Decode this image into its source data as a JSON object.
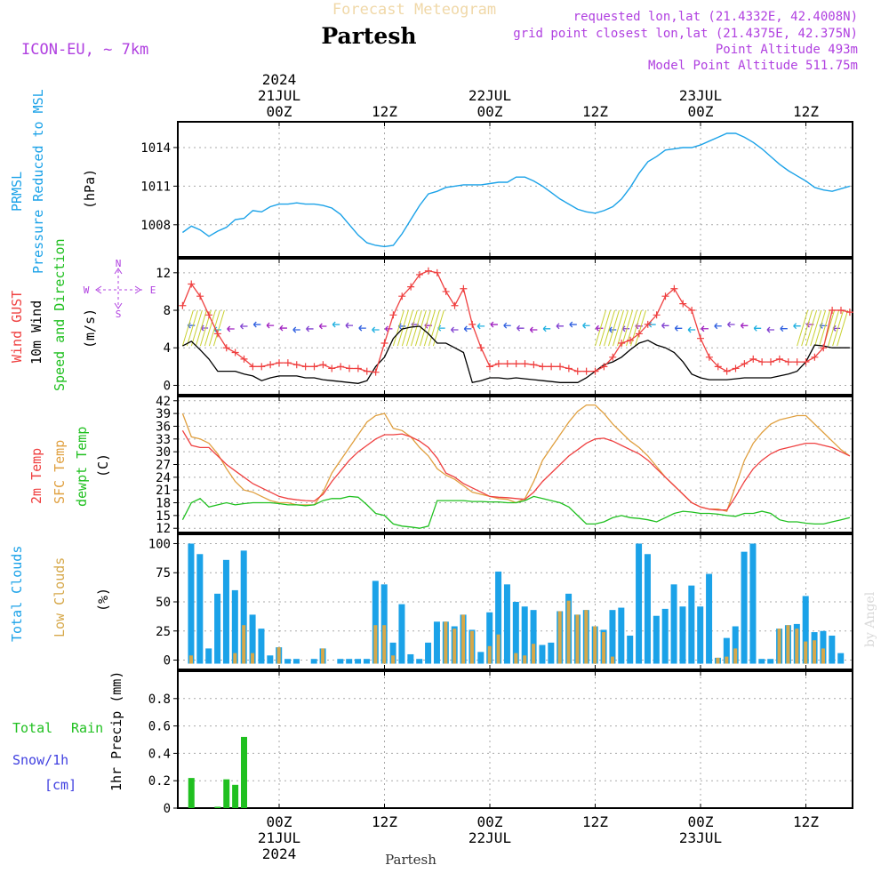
{
  "header": {
    "subtitle": "Forecast Meteogram",
    "title": "Partesh",
    "model": "ICON-EU, ~ 7km",
    "info": [
      "requested lon,lat (21.4332E, 42.4008N)",
      "grid point closest lon,lat (21.4375E, 42.375N)",
      "Point Altitude 493m",
      "Model Point Altitude 511.75m"
    ],
    "bottom_label": "Partesh",
    "watermark": "by Angel"
  },
  "colors": {
    "pressure": "#1ba2e8",
    "gust": "#ef4040",
    "wind": "#000000",
    "t2m": "#ef4040",
    "tsfc": "#e0a040",
    "dewpt": "#20c020",
    "total_clouds": "#1ba2e8",
    "low_clouds": "#d6a84a",
    "rain": "#20c020",
    "snow": "#4040e0",
    "legend_purple": "#b040e0"
  },
  "time_axis": {
    "top_ticks": [
      {
        "h": 0,
        "lines": [
          "2024",
          "21JUL",
          "00Z"
        ]
      },
      {
        "h": 12,
        "lines": [
          "12Z"
        ]
      },
      {
        "h": 24,
        "lines": [
          "22JUL",
          "00Z"
        ]
      },
      {
        "h": 36,
        "lines": [
          "12Z"
        ]
      },
      {
        "h": 48,
        "lines": [
          "23JUL",
          "00Z"
        ]
      },
      {
        "h": 60,
        "lines": [
          "12Z"
        ]
      }
    ],
    "bottom_ticks": [
      {
        "h": 0,
        "lines": [
          "00Z",
          "21JUL",
          "2024"
        ]
      },
      {
        "h": 12,
        "lines": [
          "12Z"
        ]
      },
      {
        "h": 24,
        "lines": [
          "00Z",
          "22JUL"
        ]
      },
      {
        "h": 36,
        "lines": [
          "12Z"
        ]
      },
      {
        "h": 48,
        "lines": [
          "00Z",
          "23JUL"
        ]
      },
      {
        "h": 60,
        "lines": [
          "12Z"
        ]
      }
    ]
  },
  "chart_data": [
    {
      "type": "line",
      "id": "pressure",
      "title": "Pressure Reduced to MSL",
      "legend": [
        "PRMSL",
        "Pressure Reduced to MSL"
      ],
      "ylabel": "(hPa)",
      "ylim": [
        1005.5,
        1016
      ],
      "yticks": [
        1008,
        1011,
        1014
      ],
      "x": [
        -11,
        -10,
        -9,
        -8,
        -7,
        -6,
        -5,
        -4,
        -3,
        -2,
        -1,
        0,
        1,
        2,
        3,
        4,
        5,
        6,
        7,
        8,
        9,
        10,
        11,
        12,
        13,
        14,
        15,
        16,
        17,
        18,
        19,
        20,
        21,
        22,
        23,
        24,
        25,
        26,
        27,
        28,
        29,
        30,
        31,
        32,
        33,
        34,
        35,
        36,
        37,
        38,
        39,
        40,
        41,
        42,
        43,
        44,
        45,
        46,
        47,
        48,
        49,
        50,
        51,
        52,
        53,
        54,
        55,
        56,
        57,
        58,
        59,
        60,
        61,
        62,
        63,
        64,
        65
      ],
      "series": [
        {
          "name": "PRMSL",
          "values": [
            1007.4,
            1007.9,
            1007.6,
            1007.1,
            1007.5,
            1007.8,
            1008.4,
            1008.5,
            1009.1,
            1009.0,
            1009.4,
            1009.6,
            1009.6,
            1009.7,
            1009.6,
            1009.6,
            1009.5,
            1009.3,
            1008.8,
            1008.0,
            1007.2,
            1006.6,
            1006.4,
            1006.3,
            1006.4,
            1007.3,
            1008.4,
            1009.5,
            1010.4,
            1010.6,
            1010.9,
            1011.0,
            1011.1,
            1011.1,
            1011.1,
            1011.2,
            1011.3,
            1011.3,
            1011.7,
            1011.7,
            1011.4,
            1011.0,
            1010.5,
            1010.0,
            1009.6,
            1009.2,
            1009.0,
            1008.9,
            1009.1,
            1009.4,
            1010.0,
            1010.9,
            1012.0,
            1012.9,
            1013.3,
            1013.8,
            1013.9,
            1014.0,
            1014.0,
            1014.2,
            1014.5,
            1014.8,
            1015.1,
            1015.1,
            1014.8,
            1014.4,
            1013.9,
            1013.3,
            1012.7,
            1012.2,
            1011.8,
            1011.4,
            1010.9,
            1010.7,
            1010.6,
            1010.8,
            1011.0
          ]
        }
      ]
    },
    {
      "type": "line",
      "id": "wind",
      "title": "Wind GUST / 10m Wind Speed and Direction",
      "legend": [
        "Wind GUST",
        "10m Wind",
        "Speed and Direction"
      ],
      "ylabel": "(m/s)",
      "compass": {
        "n": "N",
        "s": "S",
        "w": "W",
        "e": "E"
      },
      "ylim": [
        -1,
        13.5
      ],
      "yticks": [
        0,
        4,
        8,
        12
      ],
      "x": [
        -11,
        -10,
        -9,
        -8,
        -7,
        -6,
        -5,
        -4,
        -3,
        -2,
        -1,
        0,
        1,
        2,
        3,
        4,
        5,
        6,
        7,
        8,
        9,
        10,
        11,
        12,
        13,
        14,
        15,
        16,
        17,
        18,
        19,
        20,
        21,
        22,
        23,
        24,
        25,
        26,
        27,
        28,
        29,
        30,
        31,
        32,
        33,
        34,
        35,
        36,
        37,
        38,
        39,
        40,
        41,
        42,
        43,
        44,
        45,
        46,
        47,
        48,
        49,
        50,
        51,
        52,
        53,
        54,
        55,
        56,
        57,
        58,
        59,
        60,
        61,
        62,
        63,
        64,
        65
      ],
      "series": [
        {
          "name": "Wind GUST",
          "values": [
            8.5,
            10.8,
            9.5,
            7.5,
            5.5,
            4.0,
            3.5,
            2.8,
            2.0,
            2.0,
            2.2,
            2.4,
            2.4,
            2.2,
            2.0,
            2.0,
            2.2,
            1.8,
            2.0,
            1.8,
            1.8,
            1.5,
            1.4,
            4.5,
            7.5,
            9.5,
            10.5,
            11.8,
            12.2,
            12.0,
            10.0,
            8.5,
            10.3,
            6.5,
            4.0,
            2.0,
            2.3,
            2.3,
            2.3,
            2.3,
            2.2,
            2.0,
            2.0,
            2.0,
            1.8,
            1.5,
            1.5,
            1.5,
            2.0,
            3.0,
            4.5,
            4.8,
            5.5,
            6.5,
            7.5,
            9.5,
            10.3,
            8.7,
            8.0,
            5.0,
            3.0,
            2.0,
            1.5,
            1.8,
            2.3,
            2.8,
            2.5,
            2.5,
            2.8,
            2.5,
            2.5,
            2.5,
            3.0,
            4.0,
            8.0,
            8.0,
            7.8
          ],
          "extra": [
            8.0,
            8.3,
            8.8,
            8.5
          ]
        },
        {
          "name": "10m Wind",
          "values": [
            4.2,
            4.7,
            3.8,
            2.8,
            1.5,
            1.5,
            1.5,
            1.2,
            1.0,
            0.5,
            0.8,
            1.0,
            1.0,
            1.0,
            0.8,
            0.8,
            0.6,
            0.5,
            0.4,
            0.3,
            0.2,
            0.5,
            2.0,
            3.0,
            5.0,
            6.0,
            6.2,
            6.3,
            5.5,
            4.5,
            4.5,
            4.0,
            3.5,
            0.3,
            0.5,
            0.8,
            0.8,
            0.7,
            0.8,
            0.7,
            0.6,
            0.5,
            0.4,
            0.3,
            0.3,
            0.3,
            0.8,
            1.5,
            2.2,
            2.5,
            3.0,
            3.8,
            4.5,
            4.8,
            4.3,
            4.0,
            3.5,
            2.5,
            1.2,
            0.8,
            0.6,
            0.6,
            0.6,
            0.7,
            0.8,
            0.8,
            0.8,
            0.8,
            1.0,
            1.2,
            1.5,
            2.5,
            4.3,
            4.2,
            4.0,
            4.0,
            4.0
          ],
          "extra": [
            4.2,
            4.0,
            4.5,
            3.7
          ]
        }
      ]
    },
    {
      "type": "line",
      "id": "temperature",
      "title": "2m Temp / SFC Temp / dewpt Temp",
      "legend": [
        "2m Temp",
        "SFC Temp",
        "dewpt Temp"
      ],
      "ylabel": "(C)",
      "ylim": [
        11,
        43
      ],
      "yticks": [
        12,
        15,
        18,
        21,
        24,
        27,
        30,
        33,
        36,
        39,
        42
      ],
      "x": [
        -11,
        -10,
        -9,
        -8,
        -7,
        -6,
        -5,
        -4,
        -3,
        -2,
        -1,
        0,
        1,
        2,
        3,
        4,
        5,
        6,
        7,
        8,
        9,
        10,
        11,
        12,
        13,
        14,
        15,
        16,
        17,
        18,
        19,
        20,
        21,
        22,
        23,
        24,
        25,
        26,
        27,
        28,
        29,
        30,
        31,
        32,
        33,
        34,
        35,
        36,
        37,
        38,
        39,
        40,
        41,
        42,
        43,
        44,
        45,
        46,
        47,
        48,
        49,
        50,
        51,
        52,
        53,
        54,
        55,
        56,
        57,
        58,
        59,
        60,
        61,
        62,
        63,
        64,
        65
      ],
      "series": [
        {
          "name": "2m Temp",
          "values": [
            35.0,
            31.5,
            31.0,
            31.0,
            29.0,
            27.0,
            25.5,
            24.0,
            22.5,
            21.5,
            20.5,
            19.5,
            19.0,
            18.7,
            18.5,
            18.4,
            20.0,
            23.0,
            25.5,
            28.0,
            30.0,
            31.5,
            33.0,
            34.0,
            34.0,
            34.2,
            33.5,
            32.5,
            31.0,
            28.5,
            25.0,
            24.0,
            22.5,
            21.5,
            20.5,
            19.5,
            19.3,
            19.2,
            19.0,
            18.8,
            20.5,
            23.0,
            25.0,
            27.0,
            29.0,
            30.5,
            32.0,
            33.0,
            33.2,
            32.5,
            31.5,
            30.5,
            29.5,
            28.0,
            26.0,
            24.0,
            22.0,
            20.0,
            18.0,
            17.0,
            16.5,
            16.3,
            16.3,
            19.5,
            23.0,
            26.0,
            28.0,
            29.5,
            30.5,
            31.0,
            31.5,
            32.0,
            32.0,
            31.5,
            31.0,
            30.0,
            29.0
          ]
        },
        {
          "name": "SFC Temp",
          "values": [
            39.0,
            33.5,
            33.0,
            32.0,
            29.5,
            26.0,
            23.0,
            21.0,
            20.5,
            19.5,
            18.5,
            18.0,
            18.0,
            17.5,
            17.5,
            17.5,
            20.5,
            25.0,
            28.0,
            31.0,
            34.0,
            37.0,
            38.5,
            39.0,
            35.5,
            35.0,
            33.5,
            31.0,
            29.0,
            26.0,
            24.5,
            23.5,
            22.0,
            20.5,
            20.0,
            19.5,
            19.0,
            18.8,
            18.0,
            19.0,
            23.0,
            28.0,
            31.0,
            34.0,
            37.0,
            39.5,
            41.0,
            41.0,
            39.0,
            36.5,
            34.5,
            32.5,
            31.0,
            29.0,
            26.5,
            24.0,
            22.0,
            20.0,
            18.0,
            17.0,
            16.5,
            16.5,
            16.0,
            22.0,
            28.0,
            32.0,
            34.5,
            36.5,
            37.5,
            38.0,
            38.5,
            38.5,
            36.5,
            34.5,
            32.5,
            30.5,
            29.0
          ]
        },
        {
          "name": "dewpt Temp",
          "values": [
            14.0,
            18.0,
            19.0,
            17.0,
            17.5,
            18.0,
            17.5,
            17.8,
            18.0,
            18.0,
            18.0,
            17.8,
            17.5,
            17.5,
            17.3,
            17.5,
            18.5,
            19.0,
            19.0,
            19.5,
            19.3,
            17.5,
            15.5,
            15.0,
            13.0,
            12.5,
            12.3,
            12.0,
            12.5,
            18.5,
            18.5,
            18.5,
            18.5,
            18.3,
            18.3,
            18.2,
            18.2,
            18.0,
            18.0,
            18.5,
            19.5,
            19.0,
            18.5,
            18.0,
            17.0,
            15.0,
            13.0,
            13.0,
            13.5,
            14.5,
            15.0,
            14.5,
            14.3,
            14.0,
            13.5,
            14.5,
            15.5,
            16.0,
            15.8,
            15.5,
            15.5,
            15.3,
            15.0,
            14.8,
            15.5,
            15.5,
            16.0,
            15.5,
            14.0,
            13.5,
            13.5,
            13.2,
            13.0,
            13.0,
            13.5,
            14.0,
            14.5
          ]
        }
      ]
    },
    {
      "type": "bar",
      "id": "clouds",
      "title": "Total Clouds / Low Clouds",
      "legend": [
        "Total Clouds",
        "Low Clouds"
      ],
      "ylabel": "(%)",
      "ylim": [
        -8,
        108
      ],
      "yticks": [
        0,
        25,
        50,
        75,
        100
      ],
      "x": [
        -10,
        -9,
        -8,
        -7,
        -6,
        -5,
        -4,
        -3,
        -2,
        -1,
        0,
        1,
        2,
        3,
        4,
        5,
        6,
        7,
        8,
        9,
        10,
        11,
        12,
        13,
        14,
        15,
        16,
        17,
        18,
        19,
        20,
        21,
        22,
        23,
        24,
        25,
        26,
        27,
        28,
        29,
        30,
        31,
        32,
        33,
        34,
        35,
        36,
        37,
        38,
        39,
        40,
        41,
        42,
        43,
        44,
        45,
        46,
        47,
        48,
        49,
        50,
        51,
        52,
        53,
        54,
        55,
        56,
        57,
        58,
        59,
        60,
        61,
        62,
        63,
        64
      ],
      "series": [
        {
          "name": "Total Clouds",
          "values": [
            100,
            91,
            10,
            57,
            86,
            60,
            94,
            39,
            27,
            4,
            11,
            1,
            1,
            0,
            1,
            10,
            0,
            1,
            1,
            1,
            1,
            68,
            65,
            15,
            48,
            5,
            1,
            15,
            33,
            33,
            29,
            39,
            26,
            7,
            41,
            76,
            65,
            50,
            46,
            43,
            13,
            15,
            42,
            57,
            39,
            43,
            29,
            26,
            43,
            45,
            21,
            100,
            91,
            38,
            44,
            65,
            46,
            64,
            46,
            74,
            2,
            19,
            29,
            93,
            100,
            1,
            1,
            27,
            30,
            31,
            55,
            24,
            25,
            21,
            6
          ]
        },
        {
          "name": "Low Clouds",
          "values": [
            4,
            0,
            0,
            0,
            0,
            6,
            30,
            6,
            0,
            0,
            11,
            0,
            0,
            0,
            0,
            10,
            0,
            0,
            0,
            0,
            0,
            30,
            30,
            4,
            0,
            0,
            0,
            0,
            0,
            33,
            27,
            39,
            25,
            0,
            12,
            22,
            0,
            6,
            4,
            14,
            0,
            0,
            42,
            51,
            39,
            43,
            29,
            24,
            3,
            0,
            0,
            0,
            0,
            0,
            0,
            0,
            0,
            0,
            0,
            0,
            2,
            3,
            10,
            0,
            0,
            0,
            0,
            27,
            30,
            27,
            16,
            17,
            10,
            0,
            0
          ]
        }
      ]
    },
    {
      "type": "bar",
      "id": "precip",
      "title": "1hr Precip (mm)",
      "legend": [
        "Total",
        "Rain",
        "Snow/1h",
        "[cm]"
      ],
      "ylabel": "1hr Precip (mm)",
      "ylim": [
        0,
        1.0
      ],
      "yticks": [
        0,
        0.2,
        0.4,
        0.6,
        0.8
      ],
      "ytick_labels": [
        "0",
        "0.2",
        "0.4",
        "0.6",
        "0.8"
      ],
      "x": [
        -10,
        -9,
        -8,
        -7,
        -6,
        -5,
        -4,
        -3,
        -2
      ],
      "series": [
        {
          "name": "Rain",
          "values": [
            0.22,
            0,
            0,
            0.01,
            0.21,
            0.17,
            0.52,
            0,
            0
          ]
        }
      ]
    }
  ]
}
